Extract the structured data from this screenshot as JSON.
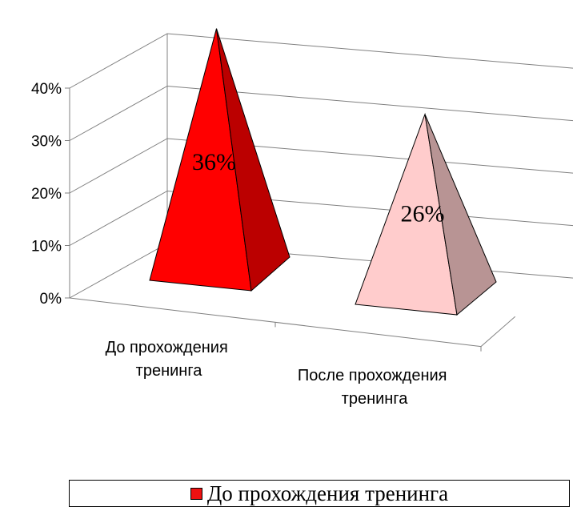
{
  "chart_data": {
    "type": "bar",
    "style": "3d-pyramid",
    "categories": [
      "До прохождения тренинга",
      "После прохождения тренинга"
    ],
    "category_lines": [
      [
        "До прохождения",
        "тренинга"
      ],
      [
        "После прохождения",
        "тренинга"
      ]
    ],
    "values": [
      0.36,
      0.26
    ],
    "data_labels": [
      "36%",
      "26%"
    ],
    "y_ticks": [
      "0%",
      "10%",
      "20%",
      "30%",
      "40%"
    ],
    "ylim": [
      0,
      0.4
    ],
    "grid": true,
    "legend": {
      "position": "bottom",
      "entries": [
        "До прохождения тренинга"
      ]
    },
    "colors": {
      "series1_front": "#ff0000",
      "series1_side": "#bb0000",
      "series2_front": "#ffcccc",
      "series2_side": "#b89494",
      "axis": "#808080"
    }
  }
}
